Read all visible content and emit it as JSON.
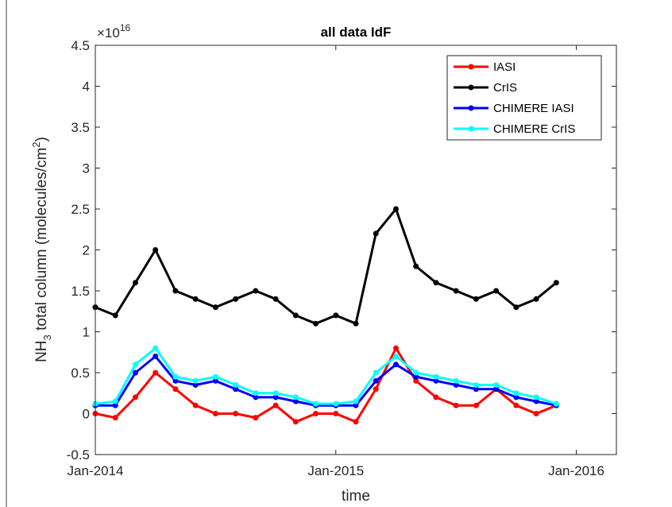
{
  "chart_data": {
    "type": "line",
    "title": "all data IdF",
    "xlabel": "time",
    "ylabel": [
      "NH",
      "3",
      " total column (molecules/cm",
      "2",
      ")"
    ],
    "y_multiplier": {
      "base": "×10",
      "exponent": "16"
    },
    "x": [
      "2014-01",
      "2014-02",
      "2014-03",
      "2014-04",
      "2014-05",
      "2014-06",
      "2014-07",
      "2014-08",
      "2014-09",
      "2014-10",
      "2014-11",
      "2014-12",
      "2015-01",
      "2015-02",
      "2015-03",
      "2015-04",
      "2015-05",
      "2015-06",
      "2015-07",
      "2015-08",
      "2015-09",
      "2015-10",
      "2015-11",
      "2015-12"
    ],
    "xlim": [
      "2014-01",
      "2016-03"
    ],
    "xticks": [
      {
        "value": "2014-01",
        "label": "Jan-2014"
      },
      {
        "value": "2015-01",
        "label": "Jan-2015"
      },
      {
        "value": "2016-01",
        "label": "Jan-2016"
      }
    ],
    "ylim": [
      -0.5,
      4.5
    ],
    "yticks": [
      -0.5,
      0,
      0.5,
      1,
      1.5,
      2,
      2.5,
      3,
      3.5,
      4,
      4.5
    ],
    "legend": "top-right",
    "series": [
      {
        "name": "IASI",
        "color": "#ff0000",
        "values": [
          0,
          -0.05,
          0.2,
          0.5,
          0.3,
          0.1,
          0,
          0,
          -0.05,
          0.1,
          -0.1,
          0,
          0,
          -0.1,
          0.3,
          0.8,
          0.4,
          0.2,
          0.1,
          0.1,
          0.3,
          0.1,
          0,
          0.1
        ]
      },
      {
        "name": "CrIS",
        "color": "#000000",
        "values": [
          1.3,
          1.2,
          1.6,
          2.0,
          1.5,
          1.4,
          1.3,
          1.4,
          1.5,
          1.4,
          1.2,
          1.1,
          1.2,
          1.1,
          2.2,
          2.5,
          1.8,
          1.6,
          1.5,
          1.4,
          1.5,
          1.3,
          1.4,
          1.6
        ]
      },
      {
        "name": "CHIMERE IASI",
        "color": "#0000ff",
        "values": [
          0.1,
          0.1,
          0.5,
          0.7,
          0.4,
          0.35,
          0.4,
          0.3,
          0.2,
          0.2,
          0.15,
          0.1,
          0.1,
          0.1,
          0.4,
          0.6,
          0.45,
          0.4,
          0.35,
          0.3,
          0.3,
          0.2,
          0.15,
          0.1
        ]
      },
      {
        "name": "CHIMERE CrIS",
        "color": "#00ffff",
        "values": [
          0.12,
          0.15,
          0.6,
          0.8,
          0.45,
          0.4,
          0.45,
          0.35,
          0.25,
          0.25,
          0.2,
          0.12,
          0.12,
          0.15,
          0.5,
          0.7,
          0.5,
          0.45,
          0.4,
          0.35,
          0.35,
          0.25,
          0.2,
          0.12
        ]
      }
    ]
  }
}
